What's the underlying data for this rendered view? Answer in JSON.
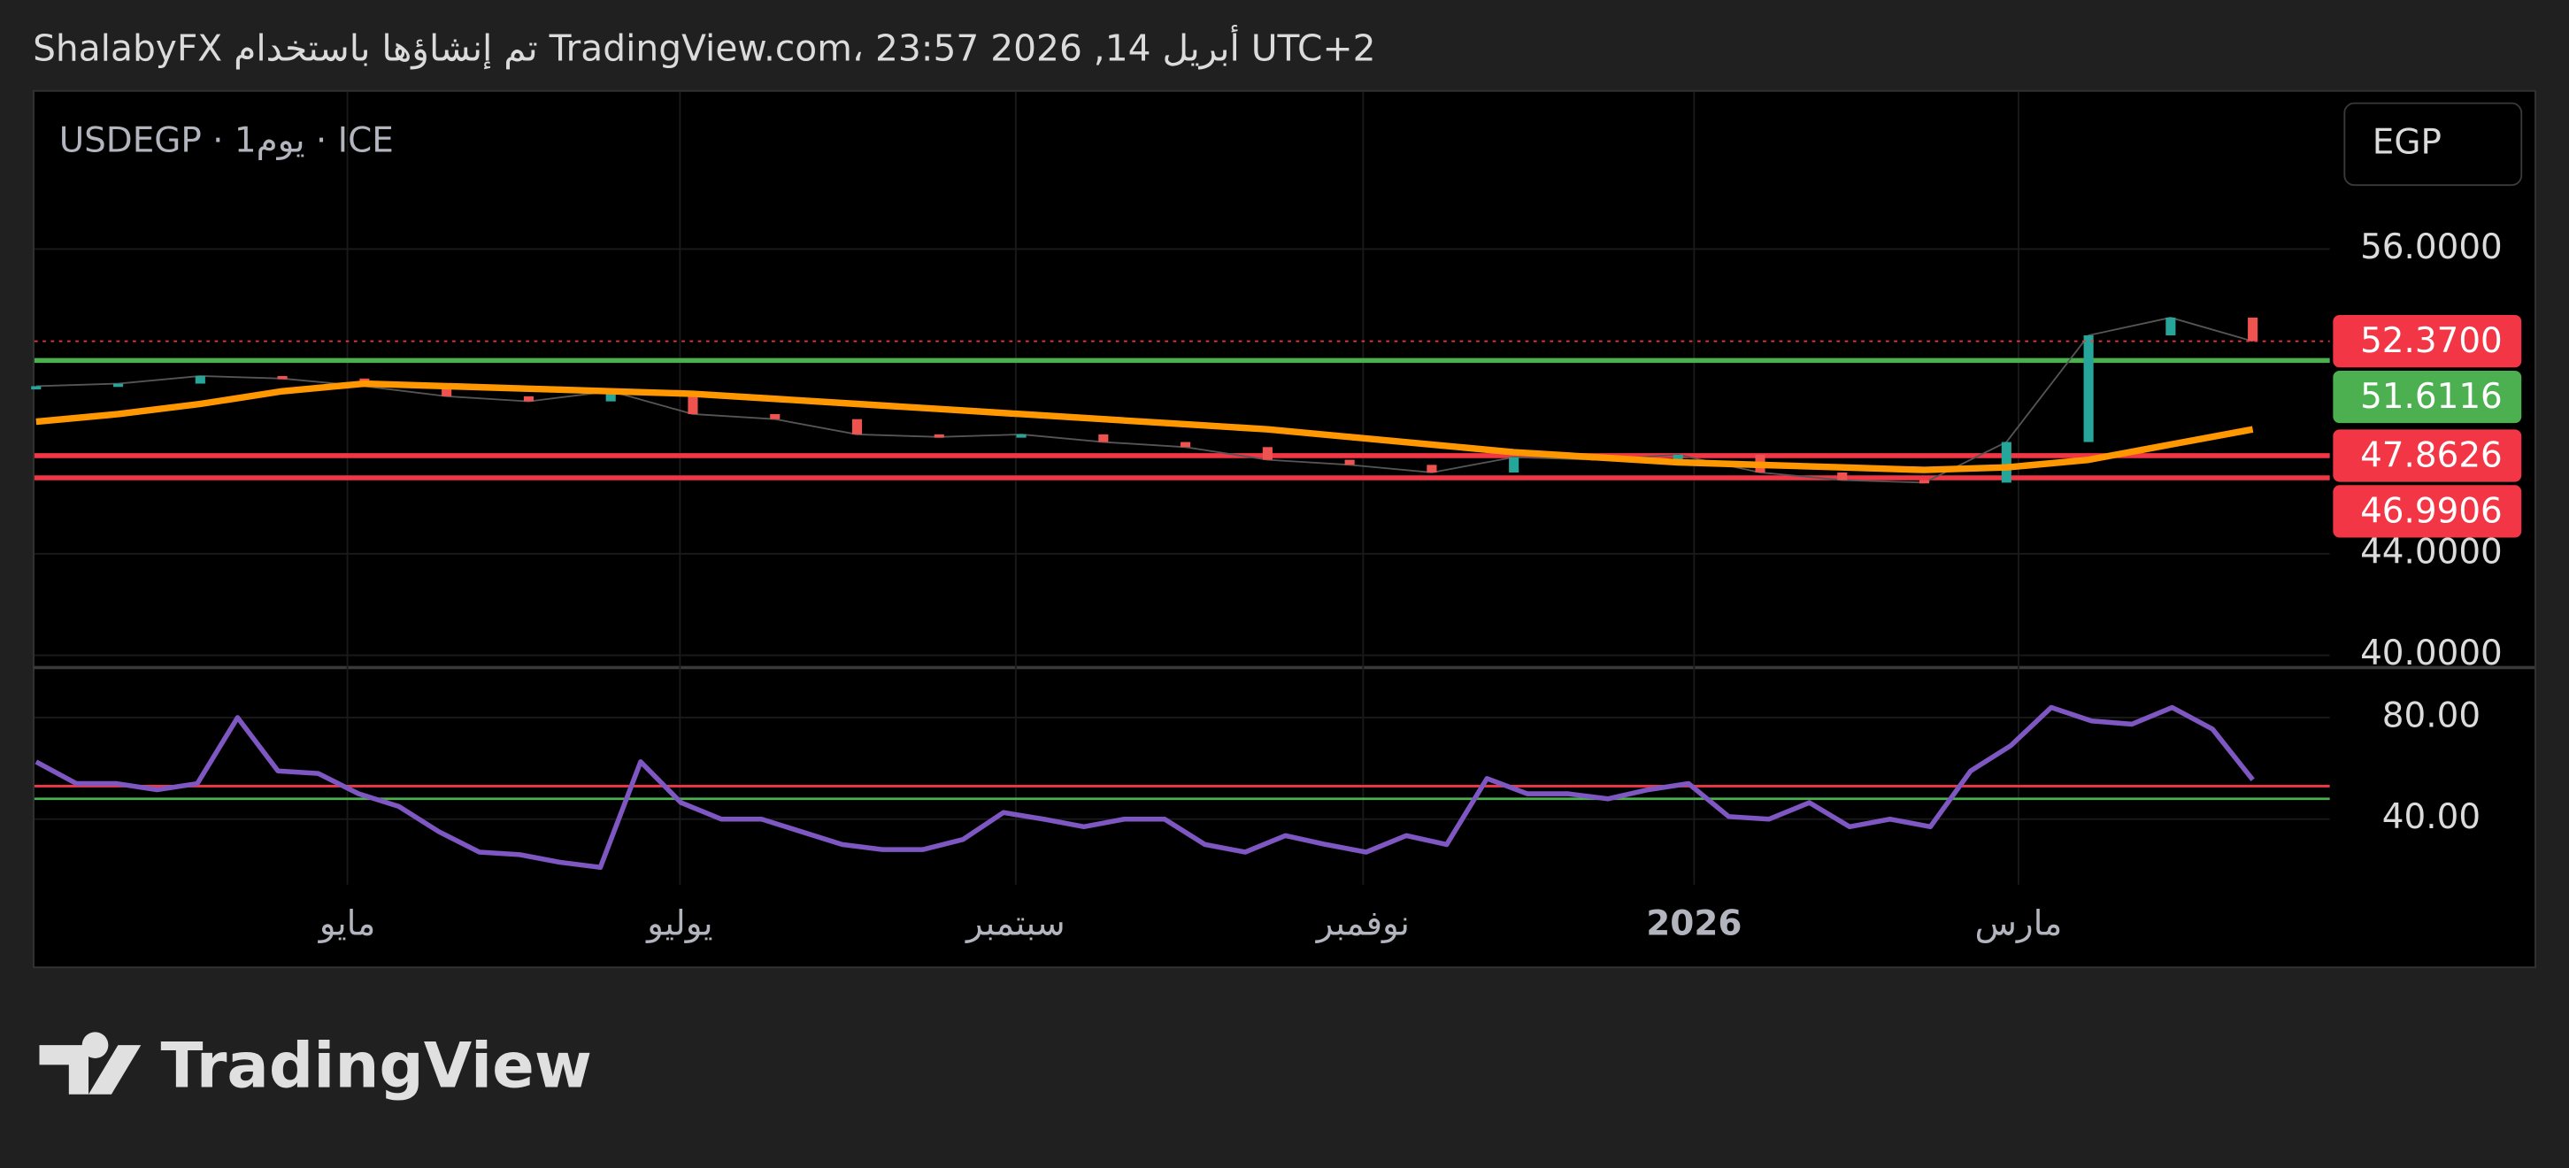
{
  "header": {
    "title": "ShalabyFX تم إنشاؤها باستخدام TradingView.com، 23:57 2026 ,14 أبريل UTC+2"
  },
  "symbol": "USDEGP · 1يوم · ICE",
  "currency": "EGP",
  "logo": "TradingView",
  "x_labels": [
    "مايو",
    "يوليو",
    "سبتمبر",
    "نوفمبر",
    "2026",
    "مارس"
  ],
  "chart_data": [
    {
      "type": "candlestick",
      "ylim": [
        39.55,
        62.26
      ],
      "yticks": [
        {
          "value": 40,
          "label": "40.0000"
        },
        {
          "value": 44,
          "label": "44.0000"
        },
        {
          "value": 56,
          "label": "56.0000"
        }
      ],
      "grid": true,
      "series": [
        {
          "color": "#26a69a",
          "down_color": "#ef5350",
          "values": [
            50.6,
            50.7,
            51.0,
            50.9,
            50.6,
            50.2,
            50.0,
            50.4,
            49.5,
            49.3,
            48.7,
            48.6,
            48.7,
            48.4,
            48.2,
            47.7,
            47.5,
            47.2,
            47.8,
            47.7,
            47.9,
            47.2,
            46.9,
            46.8,
            48.4,
            52.6,
            53.3,
            52.37
          ]
        },
        {
          "color": "#ff9800",
          "values": [
            49.2,
            49.5,
            49.9,
            50.4,
            50.7,
            50.6,
            50.5,
            50.4,
            50.3,
            50.1,
            49.9,
            49.7,
            49.5,
            49.3,
            49.1,
            48.9,
            48.6,
            48.3,
            48.0,
            47.8,
            47.6,
            47.5,
            47.4,
            47.3,
            47.4,
            47.7,
            48.3,
            48.9
          ]
        }
      ],
      "last_price": {
        "value": 52.37,
        "label": "52.3700",
        "color": "#f23645"
      },
      "levels": [
        {
          "value": 51.6116,
          "color": "#4caf50"
        },
        {
          "value": 47.8626,
          "color": "#f23645"
        },
        {
          "value": 46.9906,
          "color": "#f23645"
        }
      ]
    },
    {
      "type": "line",
      "ylim": [
        14.2,
        99.4
      ],
      "yticks": [
        {
          "value": 40,
          "label": "40.00"
        },
        {
          "value": 80,
          "label": "80.00"
        }
      ],
      "series": [
        {
          "color": "#7e57c2",
          "values": [
            62.6,
            54,
            54,
            51.6,
            54,
            80,
            59,
            58,
            50,
            45,
            35,
            27,
            26,
            23,
            21,
            62.6,
            46.5,
            40,
            40,
            35,
            30,
            28,
            28,
            32,
            42.6,
            40,
            37,
            40,
            40,
            30,
            27,
            33.5,
            30,
            27,
            33.5,
            30,
            56,
            50,
            50,
            48,
            51.6,
            54,
            41,
            40,
            46.5,
            37,
            40,
            37,
            59,
            69,
            84,
            78.7,
            77.4,
            84,
            75.5,
            55.5
          ]
        }
      ],
      "levels": [
        {
          "value": 53,
          "color": "#f23645"
        },
        {
          "value": 48,
          "color": "#4caf50"
        }
      ]
    }
  ]
}
